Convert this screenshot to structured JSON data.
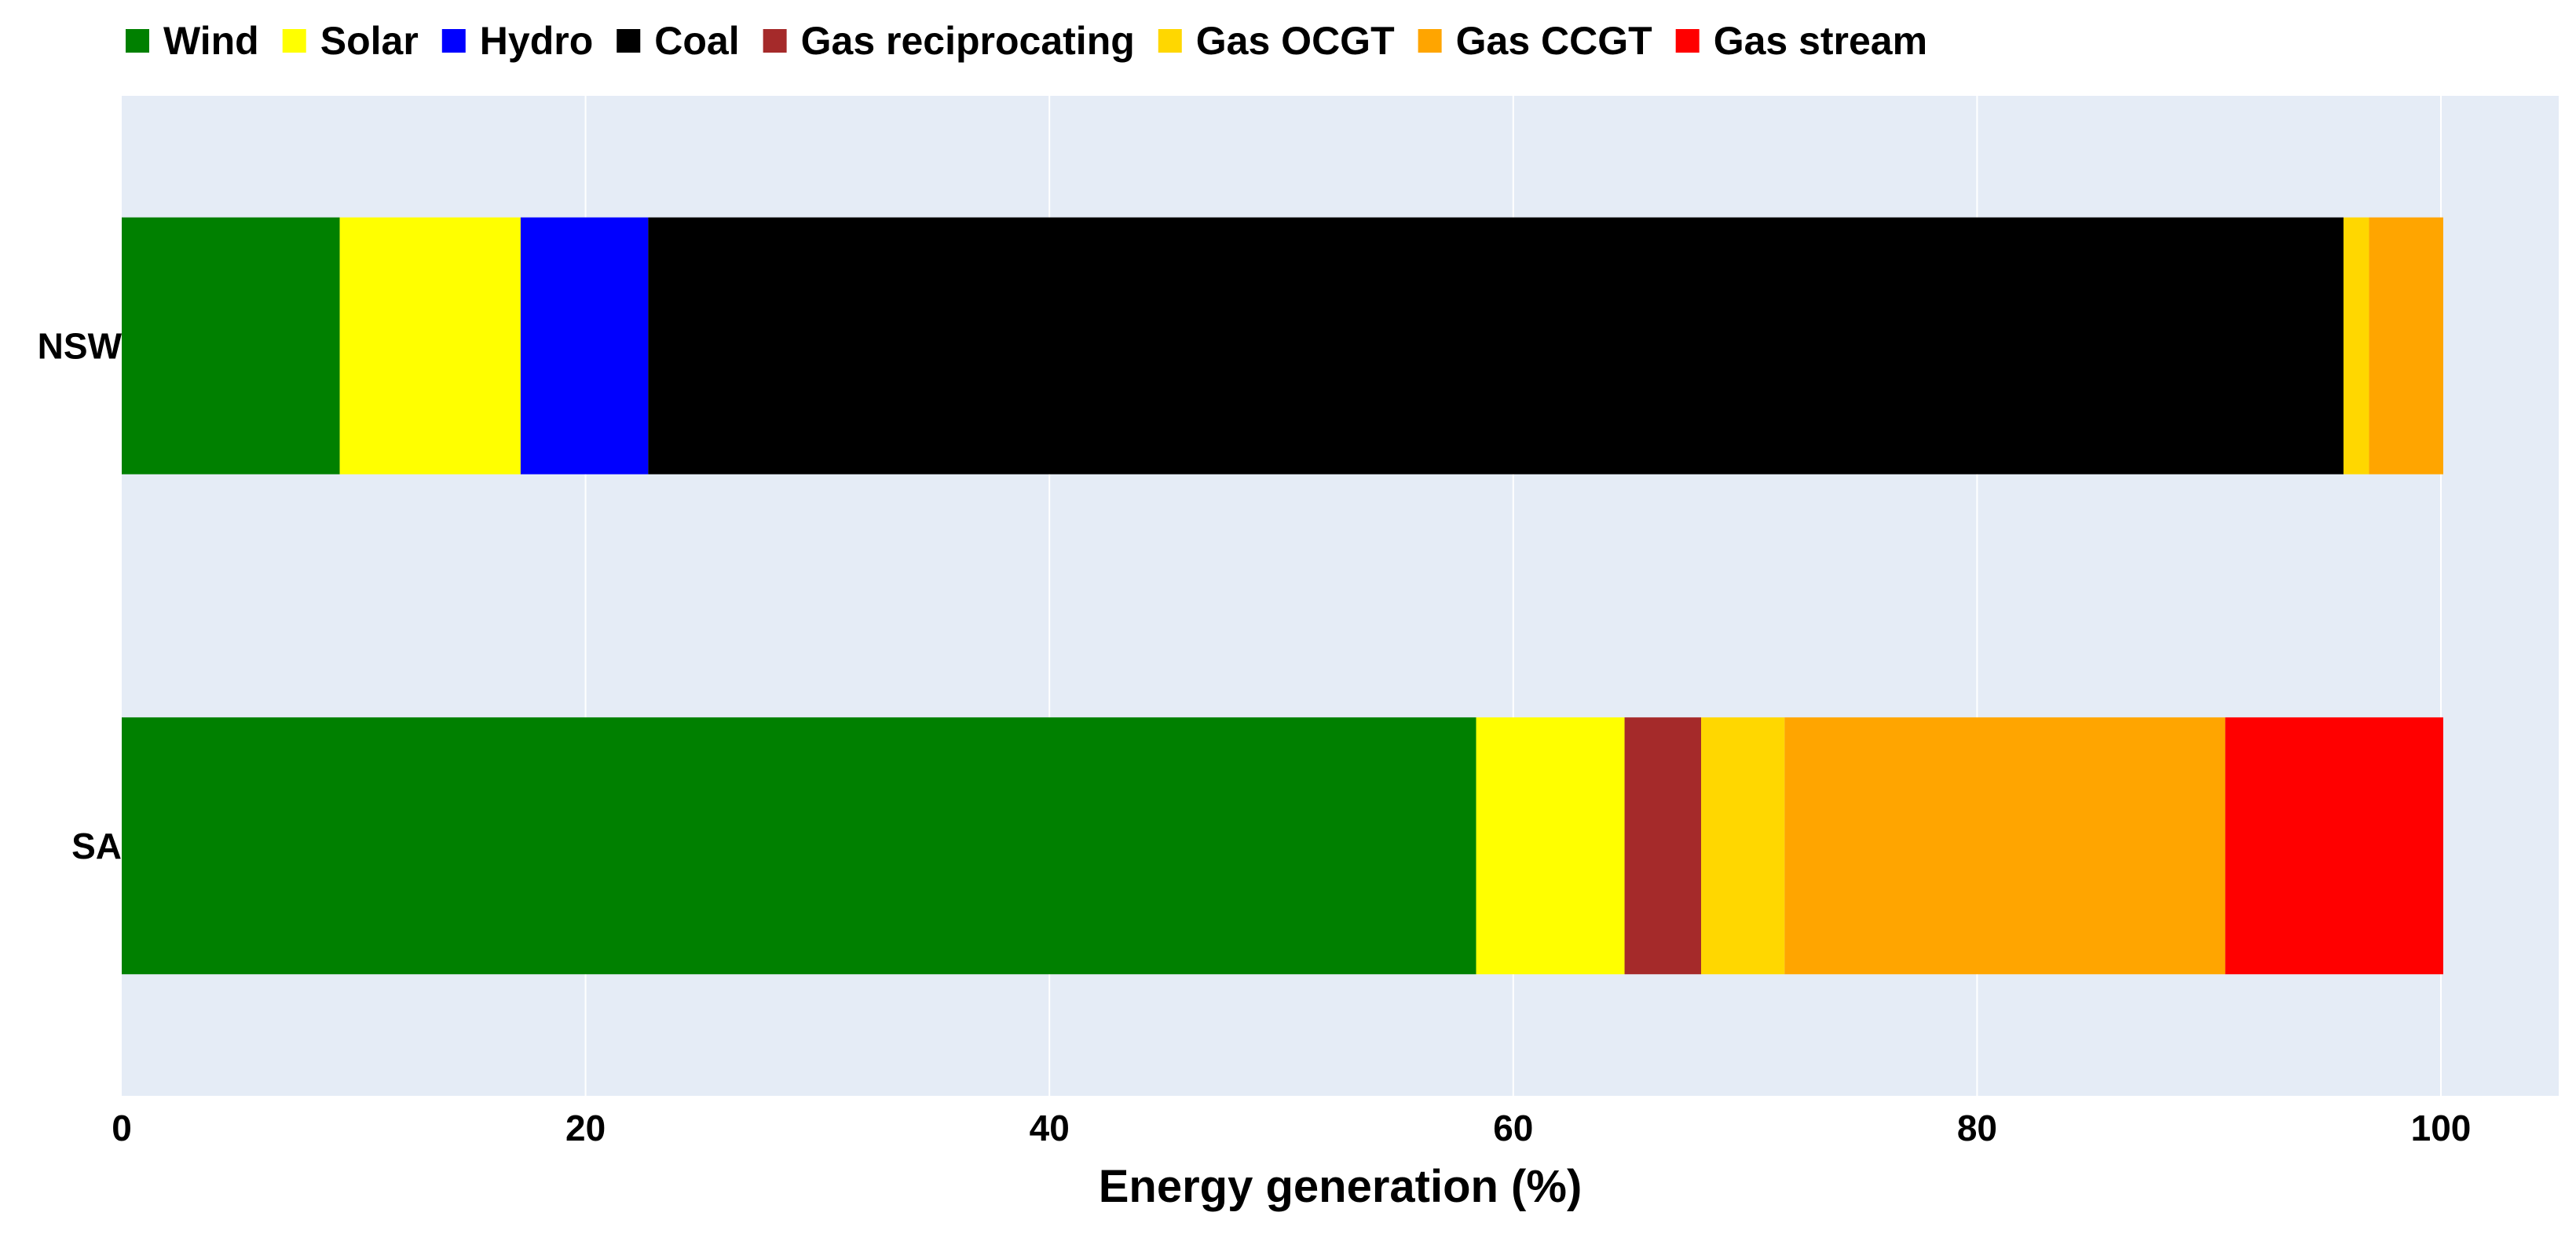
{
  "chart_data": {
    "type": "bar",
    "orientation": "horizontal",
    "stacked": true,
    "title": "",
    "xlabel": "Energy generation (%)",
    "ylabel": "",
    "xlim": [
      0,
      105
    ],
    "xticks": [
      0,
      20,
      40,
      60,
      80,
      100
    ],
    "grid": true,
    "legend_position": "top",
    "plot_background": "#e5ecf6",
    "categories": [
      "NSW",
      "SA"
    ],
    "series": [
      {
        "name": "Wind",
        "color": "#008000",
        "values": [
          9.4,
          58.4
        ]
      },
      {
        "name": "Solar",
        "color": "#ffff00",
        "values": [
          7.8,
          6.4
        ]
      },
      {
        "name": "Hydro",
        "color": "#0000ff",
        "values": [
          5.5,
          0
        ]
      },
      {
        "name": "Coal",
        "color": "#000000",
        "values": [
          73.1,
          0
        ]
      },
      {
        "name": "Gas reciprocating",
        "color": "#a52a2a",
        "values": [
          0,
          3.3
        ]
      },
      {
        "name": "Gas OCGT",
        "color": "#ffd700",
        "values": [
          1.1,
          3.6
        ]
      },
      {
        "name": "Gas CCGT",
        "color": "#ffa500",
        "values": [
          3.2,
          19.0
        ]
      },
      {
        "name": "Gas stream",
        "color": "#ff0000",
        "values": [
          0,
          9.4
        ]
      }
    ]
  }
}
